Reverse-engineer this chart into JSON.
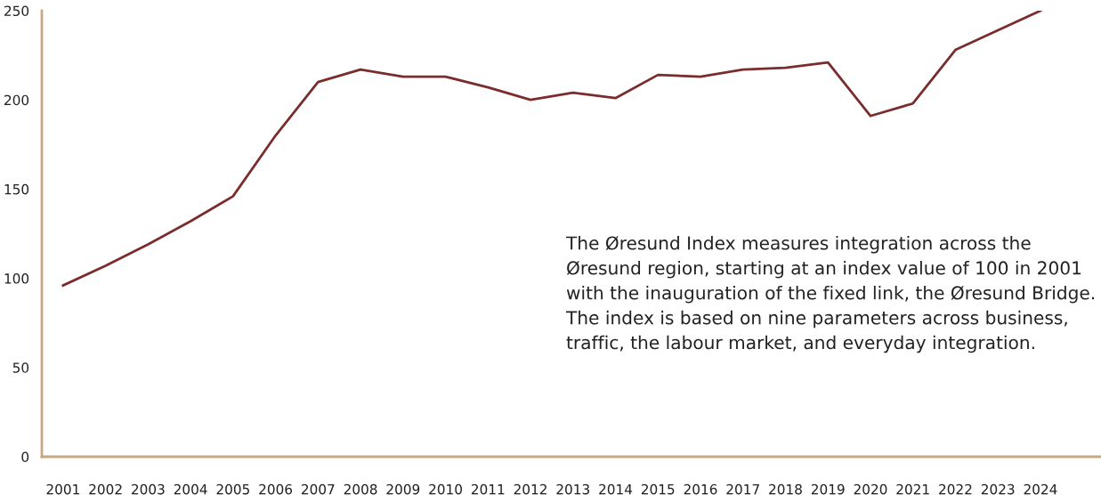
{
  "chart_data": {
    "type": "line",
    "categories": [
      "2001",
      "2002",
      "2003",
      "2004",
      "2005",
      "2006",
      "2007",
      "2008",
      "2009",
      "2010",
      "2011",
      "2012",
      "2013",
      "2014",
      "2015",
      "2016",
      "2017",
      "2018",
      "2019",
      "2020",
      "2021",
      "2022",
      "2023",
      "2024"
    ],
    "series": [
      {
        "color": "#7b2d2d",
        "values": [
          96,
          107,
          119,
          132,
          146,
          180,
          210,
          217,
          213,
          213,
          207,
          200,
          204,
          201,
          214,
          213,
          217,
          218,
          221,
          191,
          198,
          228,
          239,
          250
        ]
      }
    ],
    "ylim": [
      0,
      250
    ],
    "yticks": [
      0,
      50,
      100,
      150,
      200,
      250
    ],
    "grid": false,
    "legend": false,
    "marker": "none",
    "line_style": "solid",
    "annotations": [
      "The Øresund Index measures integration across the Øresund region, starting at an index value of 100 in 2001 with the inauguration of the fixed link, the Øresund Bridge. The index is based on nine parameters across business, traffic, the labour market, and everyday integration."
    ]
  }
}
